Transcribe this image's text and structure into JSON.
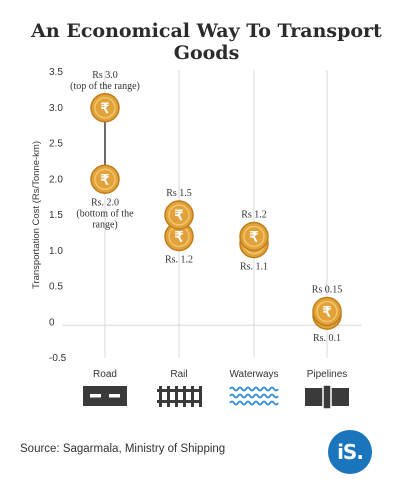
{
  "chart_data": {
    "type": "scatter",
    "title": "An Economical Way To Transport Goods",
    "ylabel": "Transportation Cost (Rs/Tonne-km)",
    "ylim": [
      -0.5,
      3.5
    ],
    "yticks": [
      "3.5",
      "3.0",
      "2.5",
      "2.0",
      "1.5",
      "1.0",
      "0.5",
      "0",
      "-0.5"
    ],
    "ytick_values": [
      3.5,
      3.0,
      2.5,
      2.0,
      1.5,
      1.0,
      0.5,
      0,
      -0.5
    ],
    "grid": "vertical",
    "categories": [
      "Road",
      "Rail",
      "Waterways",
      "Pipelines"
    ],
    "points": [
      {
        "category": "Road",
        "value": 3.0,
        "label": [
          "Rs 3.0",
          "(top of the range)"
        ],
        "label_pos": "above"
      },
      {
        "category": "Road",
        "value": 2.0,
        "label": [
          "Rs. 2.0",
          "(bottom of the",
          "range)"
        ],
        "label_pos": "below"
      },
      {
        "category": "Rail",
        "value": 1.5,
        "label": [
          "Rs 1.5"
        ],
        "label_pos": "above"
      },
      {
        "category": "Rail",
        "value": 1.2,
        "label": [
          "Rs. 1.2"
        ],
        "label_pos": "below"
      },
      {
        "category": "Waterways",
        "value": 1.2,
        "label": [
          "Rs 1.2"
        ],
        "label_pos": "above"
      },
      {
        "category": "Waterways",
        "value": 1.1,
        "label": [
          "Rs. 1.1"
        ],
        "label_pos": "below"
      },
      {
        "category": "Pipelines",
        "value": 0.15,
        "label": [
          "Rs 0.15"
        ],
        "label_pos": "above"
      },
      {
        "category": "Pipelines",
        "value": 0.1,
        "label": [
          "Rs. 0.1"
        ],
        "label_pos": "below"
      }
    ],
    "range_line_category": "Road",
    "coin_symbol": "₹",
    "category_icons": [
      "road-icon",
      "rail-track-icon",
      "waves-icon",
      "pipeline-icon"
    ]
  },
  "source": "Source: Sagarmala, Ministry of Shipping",
  "logo_text": "iS.",
  "colors": {
    "coin": "#e2a23b",
    "coin_edge": "#c07e1a",
    "coin_ring": "#f2c56b",
    "grid": "#d8d8d8",
    "icon": "#3a3a3a",
    "waves": "#2e8fd6",
    "logo": "#1b75bc"
  }
}
